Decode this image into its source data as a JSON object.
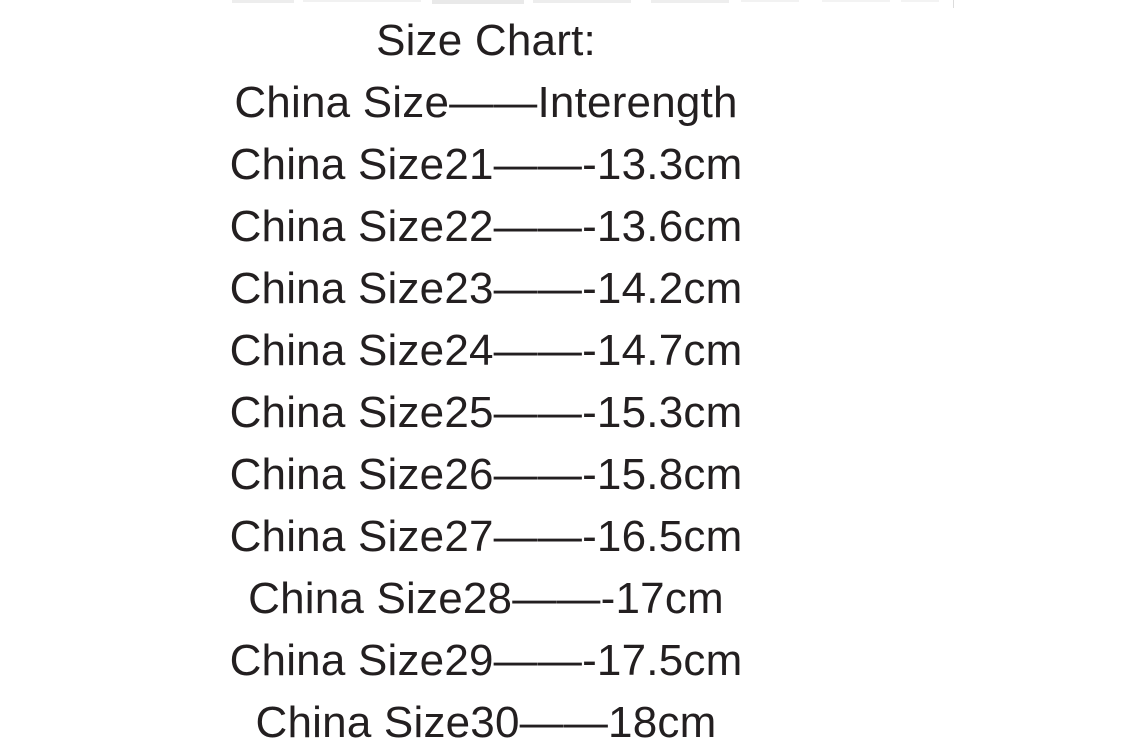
{
  "page": {
    "background_color": "#ffffff",
    "text_color": "#231f20"
  },
  "size_chart": {
    "title": "Size Chart:",
    "header": "China Size——Interength",
    "header_columns": {
      "left": "China Size",
      "right": "Interength"
    },
    "rows": [
      {
        "display": "China Size21——-13.3cm",
        "china_size": "21",
        "inner_length": "13.3cm"
      },
      {
        "display": "China Size22——-13.6cm",
        "china_size": "22",
        "inner_length": "13.6cm"
      },
      {
        "display": "China Size23——-14.2cm",
        "china_size": "23",
        "inner_length": "14.2cm"
      },
      {
        "display": "China Size24——-14.7cm",
        "china_size": "24",
        "inner_length": "14.7cm"
      },
      {
        "display": "China Size25——-15.3cm",
        "china_size": "25",
        "inner_length": "15.3cm"
      },
      {
        "display": "China Size26——-15.8cm",
        "china_size": "26",
        "inner_length": "15.8cm"
      },
      {
        "display": "China Size27——-16.5cm",
        "china_size": "27",
        "inner_length": "16.5cm"
      },
      {
        "display": "China Size28——-17cm",
        "china_size": "28",
        "inner_length": "17cm"
      },
      {
        "display": "China Size29——-17.5cm",
        "china_size": "29",
        "inner_length": "17.5cm"
      },
      {
        "display": "China Size30——18cm",
        "china_size": "30",
        "inner_length": "18cm"
      }
    ]
  }
}
